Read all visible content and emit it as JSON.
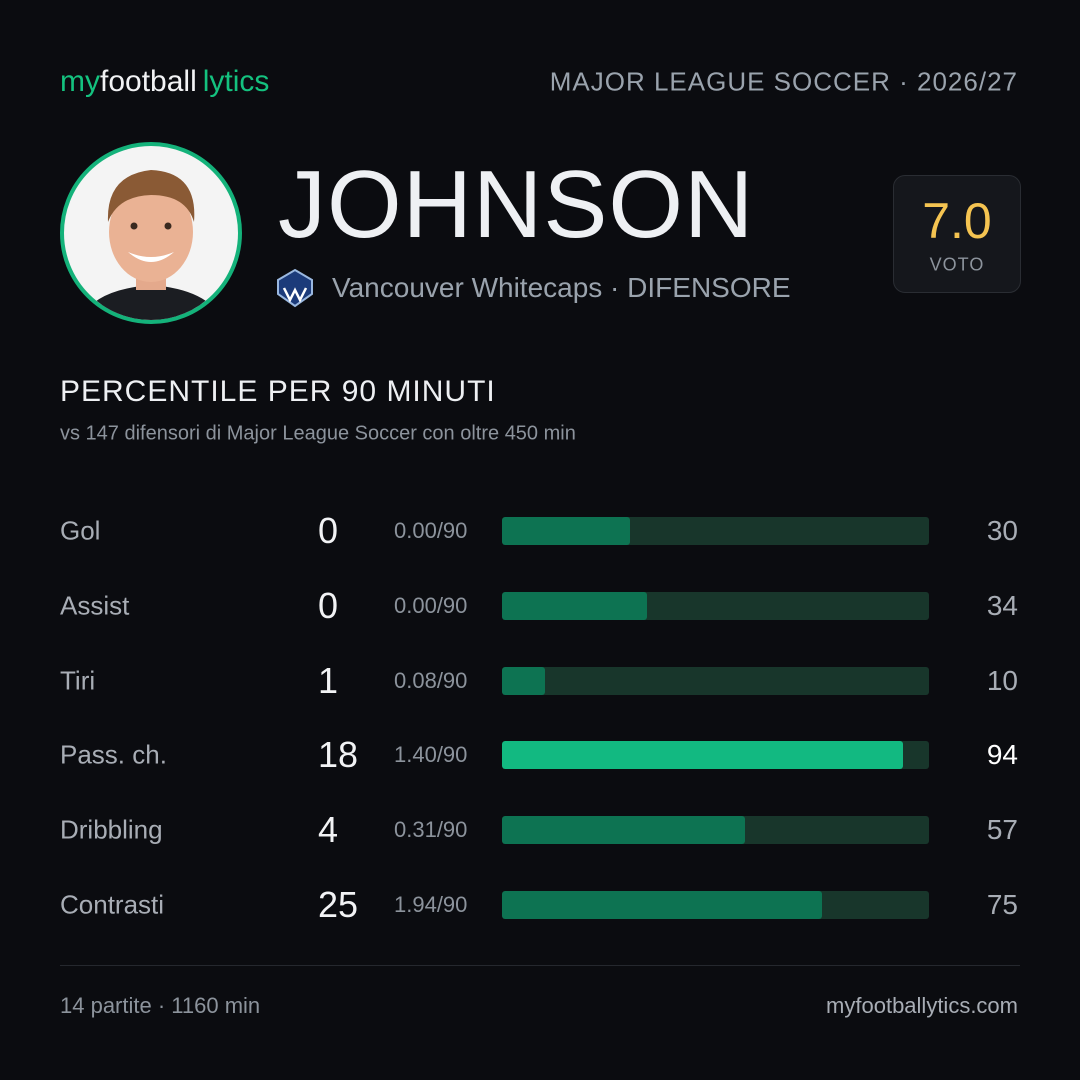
{
  "header": {
    "logo": [
      "my",
      "football",
      "lytics"
    ],
    "league": "MAJOR LEAGUE SOCCER · 2026/27"
  },
  "player": {
    "name": "JOHNSON",
    "club": "Vancouver  Whitecaps · DIFENSORE",
    "rating": "7.0",
    "rating_label": "VOTO"
  },
  "section": {
    "title": "PERCENTILE  PER 90 MINUTI",
    "subtitle": "vs 147 difensori  di Major League Soccer con oltre 450 min"
  },
  "stats": {
    "rows": [
      {
        "label": "Gol",
        "total": 0,
        "per90": "0.00/90",
        "percentile": 30,
        "color": "#0d7352",
        "highlight": false
      },
      {
        "label": "Assist",
        "total": 0,
        "per90": "0.00/90",
        "percentile": 34,
        "color": "#0d7352",
        "highlight": false
      },
      {
        "label": "Tiri",
        "total": 1,
        "per90": "0.08/90",
        "percentile": 10,
        "color": "#0d7352",
        "highlight": false
      },
      {
        "label": "Pass. ch.",
        "total": 18,
        "per90": "1.40/90",
        "percentile": 94,
        "color": "#12b981",
        "highlight": true
      },
      {
        "label": "Dribbling",
        "total": 4,
        "per90": "0.31/90",
        "percentile": 57,
        "color": "#0d7352",
        "highlight": false
      },
      {
        "label": "Contrasti",
        "total": 25,
        "per90": "1.94/90",
        "percentile": 75,
        "color": "#0d7352",
        "highlight": false
      }
    ],
    "track_color": "#18362b",
    "scale_max": 100
  },
  "footer": {
    "left": "14 partite · 1160 min",
    "right": "myfootballytics.com"
  }
}
